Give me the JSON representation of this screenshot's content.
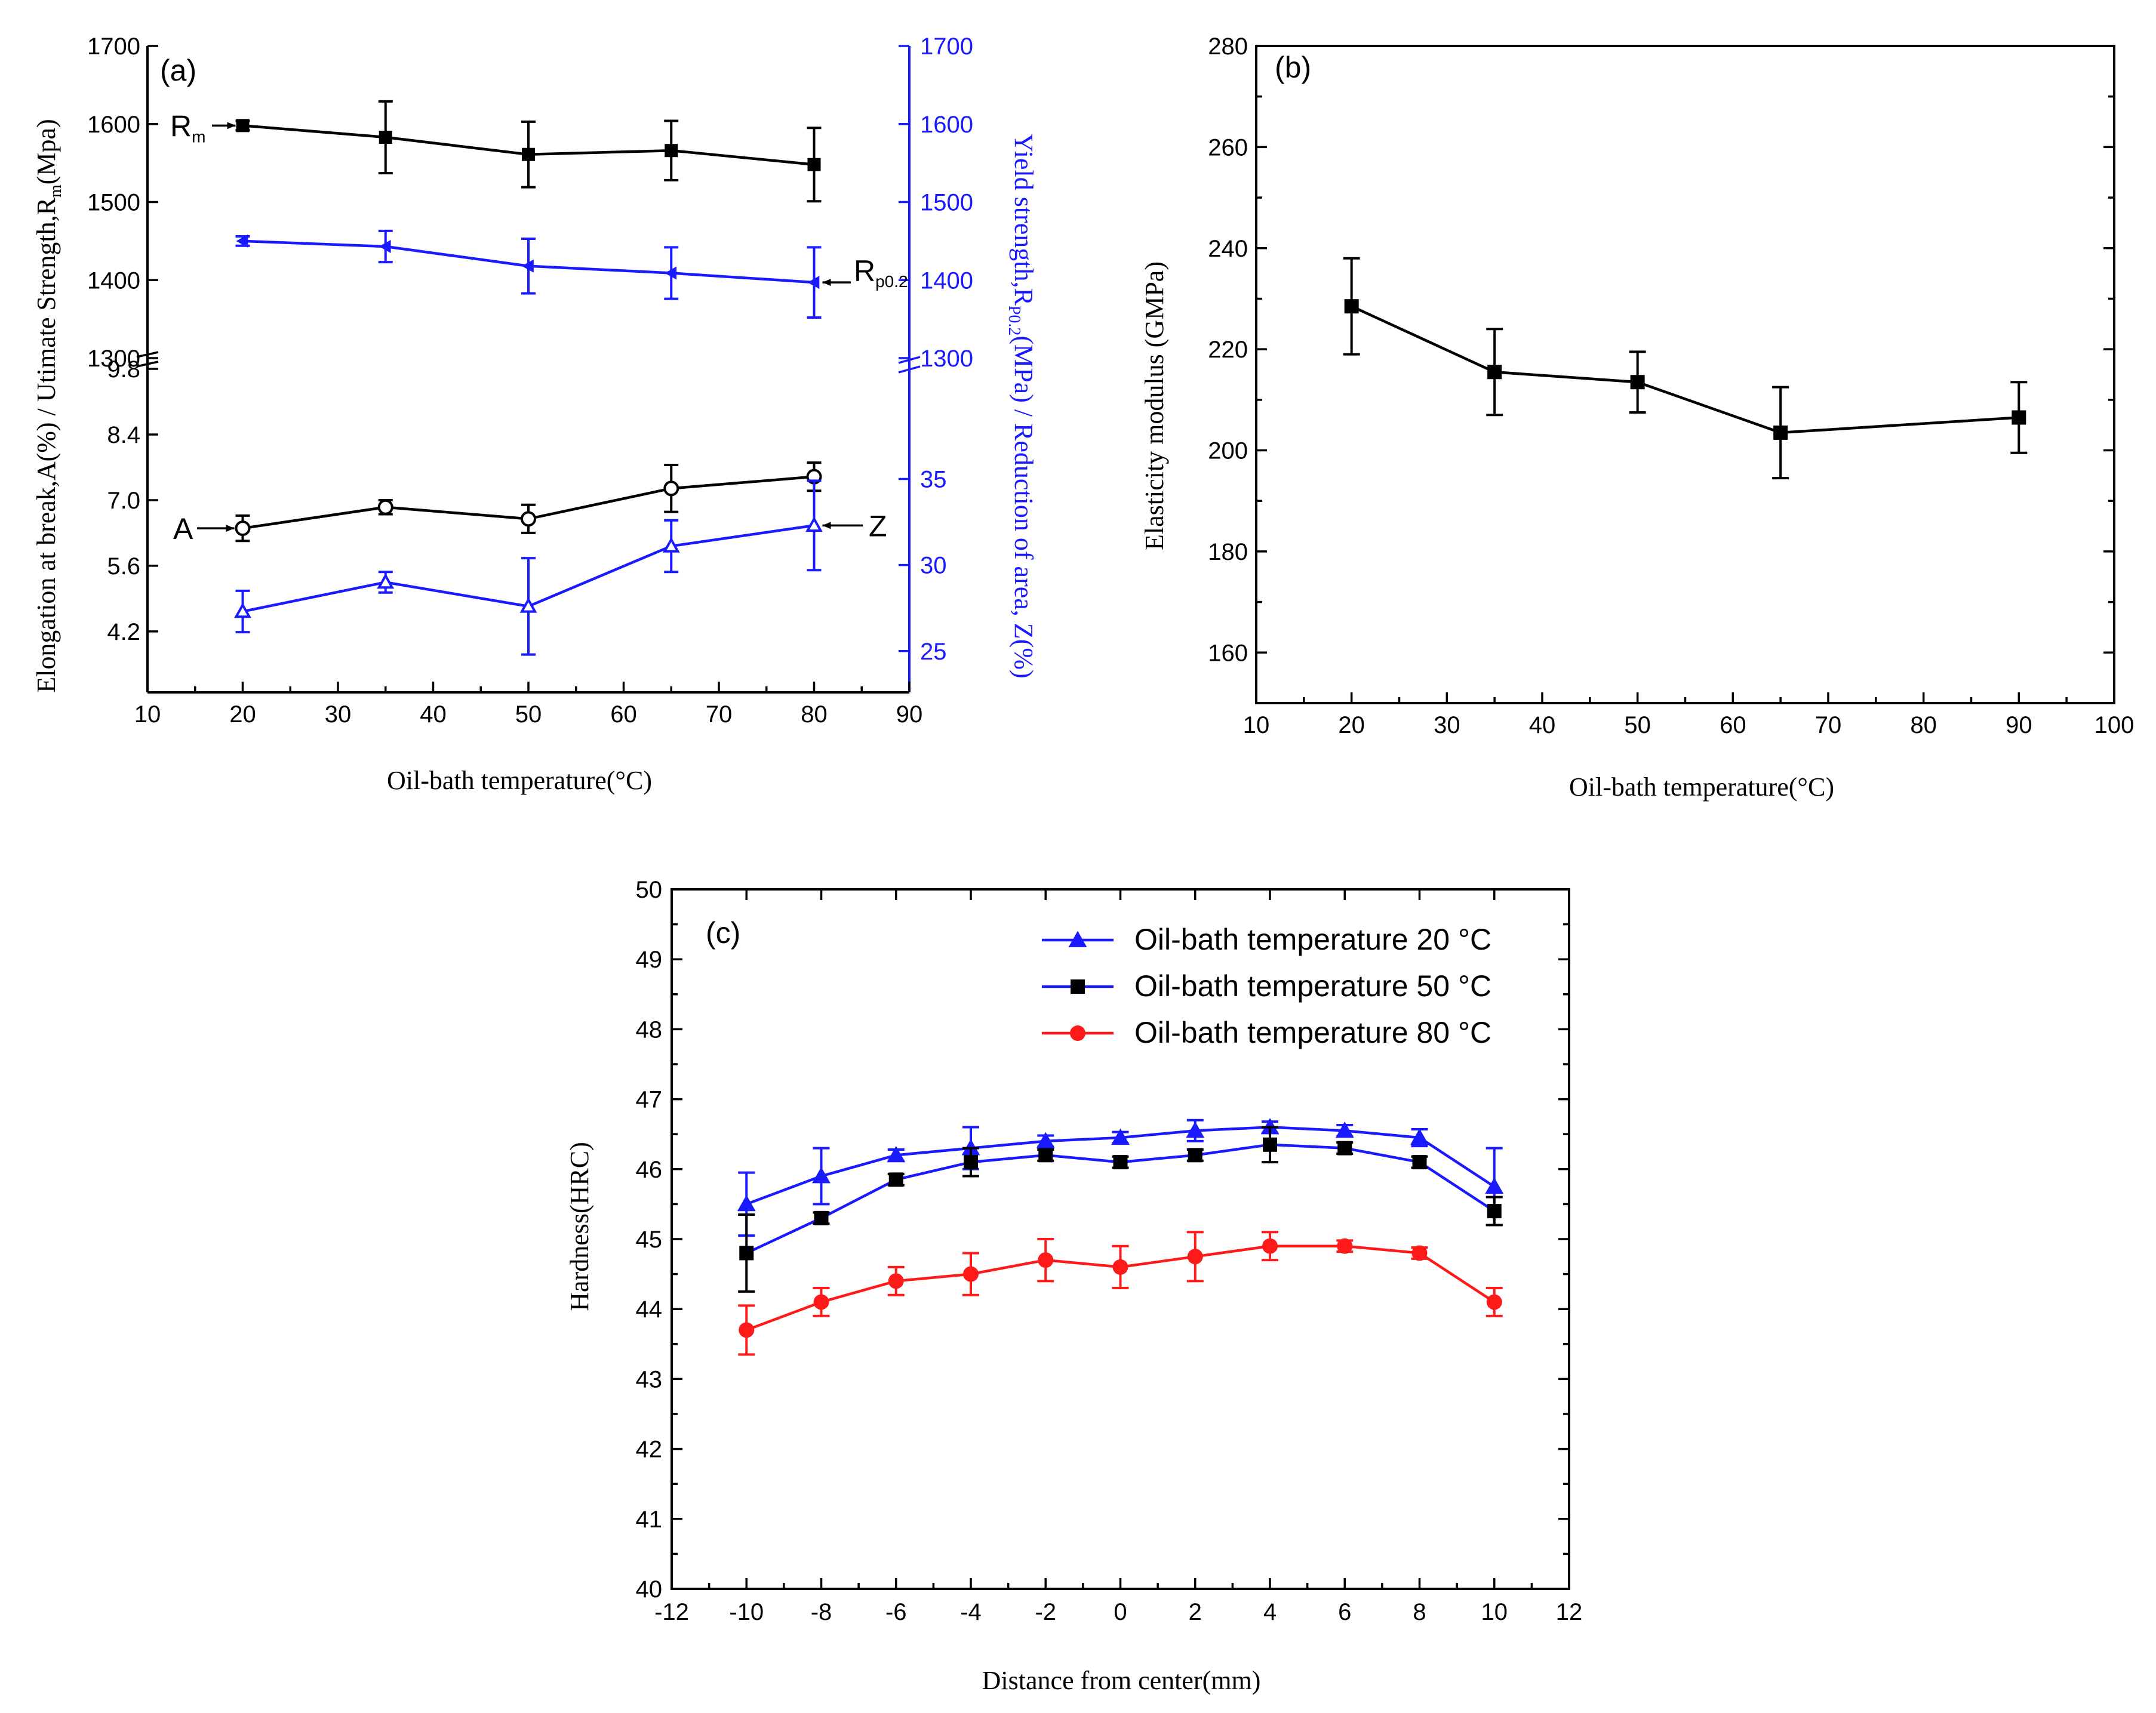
{
  "colors": {
    "black": "#000000",
    "blue": "#1a1aff",
    "red": "#ff1a1a"
  },
  "chart_data": [
    {
      "id": "a",
      "type": "line",
      "panel_label": "(a)",
      "xlabel": "Oil-bath temperature(°C)",
      "xlim": [
        10,
        90
      ],
      "xticks": [
        10,
        20,
        30,
        40,
        50,
        60,
        70,
        80,
        90
      ],
      "upper": {
        "left_ylim": [
          1300,
          1700
        ],
        "left_yticks": [
          1300,
          1400,
          1500,
          1600,
          1700
        ],
        "right_ylim": [
          1300,
          1700
        ],
        "right_yticks": [
          1300,
          1400,
          1500,
          1600,
          1700
        ],
        "series": [
          {
            "name": "Rm",
            "label": "R",
            "sub": "m",
            "axis": "left",
            "color": "#000000",
            "marker": "square-filled",
            "x": [
              20,
              35,
              50,
              65,
              80
            ],
            "y": [
              1598,
              1583,
              1561,
              1566,
              1548
            ],
            "err": [
              6,
              46,
              42,
              38,
              47
            ]
          },
          {
            "name": "Rp0.2",
            "label": "R",
            "sub": "p0.2",
            "axis": "right",
            "color": "#1a1aff",
            "marker": "triangle-left-filled",
            "x": [
              20,
              35,
              50,
              65,
              80
            ],
            "y": [
              1450,
              1443,
              1418,
              1409,
              1397
            ],
            "err": [
              6,
              20,
              35,
              33,
              45
            ]
          }
        ]
      },
      "lower": {
        "left_ylim": [
          2.9,
          9.8
        ],
        "left_yticks": [
          4.2,
          5.6,
          7.0,
          8.4,
          9.8
        ],
        "left_ytick_labels": [
          "4.2",
          "5.6",
          "7.0",
          "8.4",
          "9.8"
        ],
        "right_ylim": [
          22.6,
          41.4
        ],
        "right_yticks": [
          25,
          30,
          35
        ],
        "series": [
          {
            "name": "A",
            "label": "A",
            "axis": "left",
            "color": "#000000",
            "marker": "circle-open",
            "x": [
              20,
              35,
              50,
              65,
              80
            ],
            "y": [
              6.4,
              6.85,
              6.6,
              7.25,
              7.5
            ],
            "err": [
              0.27,
              0.15,
              0.3,
              0.5,
              0.3
            ]
          },
          {
            "name": "Z",
            "label": "Z",
            "axis": "right",
            "color": "#1a1aff",
            "marker": "triangle-open",
            "x": [
              20,
              35,
              50,
              65,
              80
            ],
            "y": [
              27.3,
              29.0,
              27.6,
              31.1,
              32.3
            ],
            "err": [
              1.2,
              0.6,
              2.8,
              1.5,
              2.6
            ]
          }
        ]
      },
      "left_ylabel": "Elongation at break,A(%) / Utimate Strength,R",
      "left_ylabel_sub": "m",
      "left_ylabel_tail": "(Mpa)",
      "right_ylabel": "Yield strength,R",
      "right_ylabel_sub": "P0.2",
      "right_ylabel_tail": "(MPa) / Reduction of area, Z(%)"
    },
    {
      "id": "b",
      "type": "line",
      "panel_label": "(b)",
      "xlabel": "Oil-bath temperature(°C)",
      "ylabel": "Elasticity modulus (GMPa)",
      "xlim": [
        10,
        100
      ],
      "xticks": [
        10,
        20,
        30,
        40,
        50,
        60,
        70,
        80,
        90,
        100
      ],
      "ylim": [
        150,
        280
      ],
      "yticks": [
        160,
        180,
        200,
        220,
        240,
        260,
        280
      ],
      "series": [
        {
          "name": "Elasticity modulus",
          "color": "#000000",
          "marker": "square-filled",
          "x": [
            20,
            35,
            50,
            65,
            90
          ],
          "y": [
            228.5,
            215.5,
            213.5,
            203.5,
            206.5
          ],
          "err": [
            9.5,
            8.5,
            6,
            9,
            7
          ]
        }
      ]
    },
    {
      "id": "c",
      "type": "line",
      "panel_label": "(c)",
      "xlabel": "Distance from center(mm)",
      "ylabel": "Hardness(HRC)",
      "xlim": [
        -12,
        12
      ],
      "xticks": [
        -12,
        -10,
        -8,
        -6,
        -4,
        -2,
        0,
        2,
        4,
        6,
        8,
        10,
        12
      ],
      "ylim": [
        40,
        50
      ],
      "yticks": [
        40,
        41,
        42,
        43,
        44,
        45,
        46,
        47,
        48,
        49,
        50
      ],
      "legend_position": "top-right",
      "series": [
        {
          "name": "Oil-bath temperature 20 °C",
          "color": "#1a1aff",
          "line_color": "#1a1aff",
          "marker": "triangle-up-filled",
          "x": [
            -10,
            -8,
            -6,
            -4,
            -2,
            0,
            2,
            4,
            6,
            8,
            10
          ],
          "y": [
            45.5,
            45.9,
            46.2,
            46.3,
            46.4,
            46.45,
            46.55,
            46.6,
            46.55,
            46.45,
            45.75
          ],
          "err": [
            0.45,
            0.4,
            0.08,
            0.3,
            0.08,
            0.08,
            0.15,
            0.08,
            0.08,
            0.12,
            0.55
          ]
        },
        {
          "name": "Oil-bath temperature 50 °C",
          "color": "#000000",
          "line_color": "#1a1aff",
          "marker": "square-filled",
          "x": [
            -10,
            -8,
            -6,
            -4,
            -2,
            0,
            2,
            4,
            6,
            8,
            10
          ],
          "y": [
            44.8,
            45.3,
            45.85,
            46.1,
            46.2,
            46.1,
            46.2,
            46.35,
            46.3,
            46.1,
            45.4
          ],
          "err": [
            0.55,
            0.08,
            0.08,
            0.2,
            0.08,
            0.08,
            0.08,
            0.25,
            0.08,
            0.08,
            0.2
          ]
        },
        {
          "name": "Oil-bath temperature 80 °C",
          "color": "#ff1a1a",
          "line_color": "#ff1a1a",
          "marker": "circle-filled",
          "x": [
            -10,
            -8,
            -6,
            -4,
            -2,
            0,
            2,
            4,
            6,
            8,
            10
          ],
          "y": [
            43.7,
            44.1,
            44.4,
            44.5,
            44.7,
            44.6,
            44.75,
            44.9,
            44.9,
            44.8,
            44.1
          ],
          "err": [
            0.35,
            0.2,
            0.2,
            0.3,
            0.3,
            0.3,
            0.35,
            0.2,
            0.08,
            0.08,
            0.2
          ]
        }
      ]
    }
  ]
}
